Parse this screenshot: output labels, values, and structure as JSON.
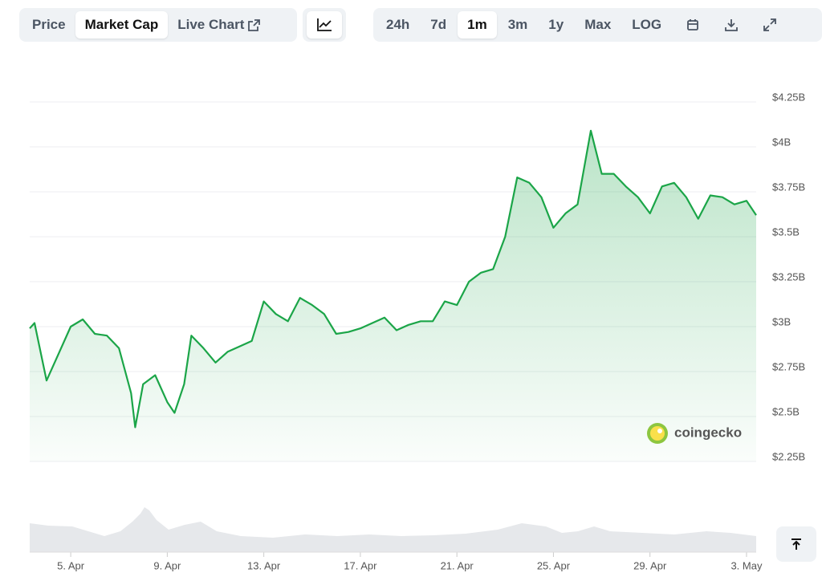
{
  "toolbar": {
    "tabs": [
      "Price",
      "Market Cap",
      "Live Chart"
    ],
    "ranges": [
      "24h",
      "7d",
      "1m",
      "3m",
      "1y",
      "Max",
      "LOG"
    ]
  },
  "watermark": "coingecko",
  "chart_data": {
    "type": "area",
    "x": [
      3.3,
      3.5,
      4,
      4.5,
      5,
      5.5,
      6,
      6.5,
      7,
      7.5,
      7.67,
      8,
      8.5,
      9,
      9.3,
      9.7,
      10,
      10.5,
      11,
      11.5,
      12,
      12.5,
      13,
      13.5,
      14,
      14.5,
      15,
      15.5,
      16,
      16.5,
      17,
      17.5,
      18,
      18.5,
      19,
      19.5,
      20,
      20.5,
      21,
      21.5,
      22,
      22.5,
      23,
      23.5,
      24,
      24.5,
      25,
      25.5,
      26,
      26.55,
      27,
      27.5,
      28,
      28.5,
      29,
      29.5,
      30,
      30.5,
      31,
      31.5,
      32,
      32.5,
      33,
      33.4
    ],
    "values": [
      2990000000,
      3020000000,
      2700000000,
      2850000000,
      3000000000,
      3040000000,
      2960000000,
      2950000000,
      2880000000,
      2630000000,
      2440000000,
      2680000000,
      2730000000,
      2580000000,
      2520000000,
      2680000000,
      2950000000,
      2880000000,
      2800000000,
      2860000000,
      2890000000,
      2920000000,
      3140000000,
      3070000000,
      3030000000,
      3160000000,
      3120000000,
      3070000000,
      2960000000,
      2970000000,
      2990000000,
      3020000000,
      3050000000,
      2980000000,
      3010000000,
      3030000000,
      3030000000,
      3140000000,
      3120000000,
      3250000000,
      3300000000,
      3320000000,
      3500000000,
      3830000000,
      3800000000,
      3720000000,
      3550000000,
      3630000000,
      3680000000,
      4090000000,
      3850000000,
      3850000000,
      3780000000,
      3720000000,
      3630000000,
      3780000000,
      3800000000,
      3720000000,
      3600000000,
      3730000000,
      3720000000,
      3680000000,
      3700000000,
      3620000000
    ],
    "color": "#1ba548",
    "xlim": [
      3.3,
      33.4
    ],
    "xticks": [
      {
        "value": 5,
        "label": "5. Apr"
      },
      {
        "value": 9,
        "label": "9. Apr"
      },
      {
        "value": 13,
        "label": "13. Apr"
      },
      {
        "value": 17,
        "label": "17. Apr"
      },
      {
        "value": 21,
        "label": "21. Apr"
      },
      {
        "value": 25,
        "label": "25. Apr"
      },
      {
        "value": 29,
        "label": "29. Apr"
      },
      {
        "value": 33,
        "label": "3. May"
      }
    ],
    "ylim": [
      2250000000,
      4250000000
    ],
    "yticks": [
      {
        "value": 2250000000,
        "label": "$2.25B"
      },
      {
        "value": 2500000000,
        "label": "$2.5B"
      },
      {
        "value": 2750000000,
        "label": "$2.75B"
      },
      {
        "value": 3000000000,
        "label": "$3B"
      },
      {
        "value": 3250000000,
        "label": "$3.25B"
      },
      {
        "value": 3500000000,
        "label": "$3.5B"
      },
      {
        "value": 3750000000,
        "label": "$3.75B"
      },
      {
        "value": 4000000000,
        "label": "$4B"
      },
      {
        "value": 4250000000,
        "label": "$4.25B"
      }
    ],
    "grid": true
  }
}
